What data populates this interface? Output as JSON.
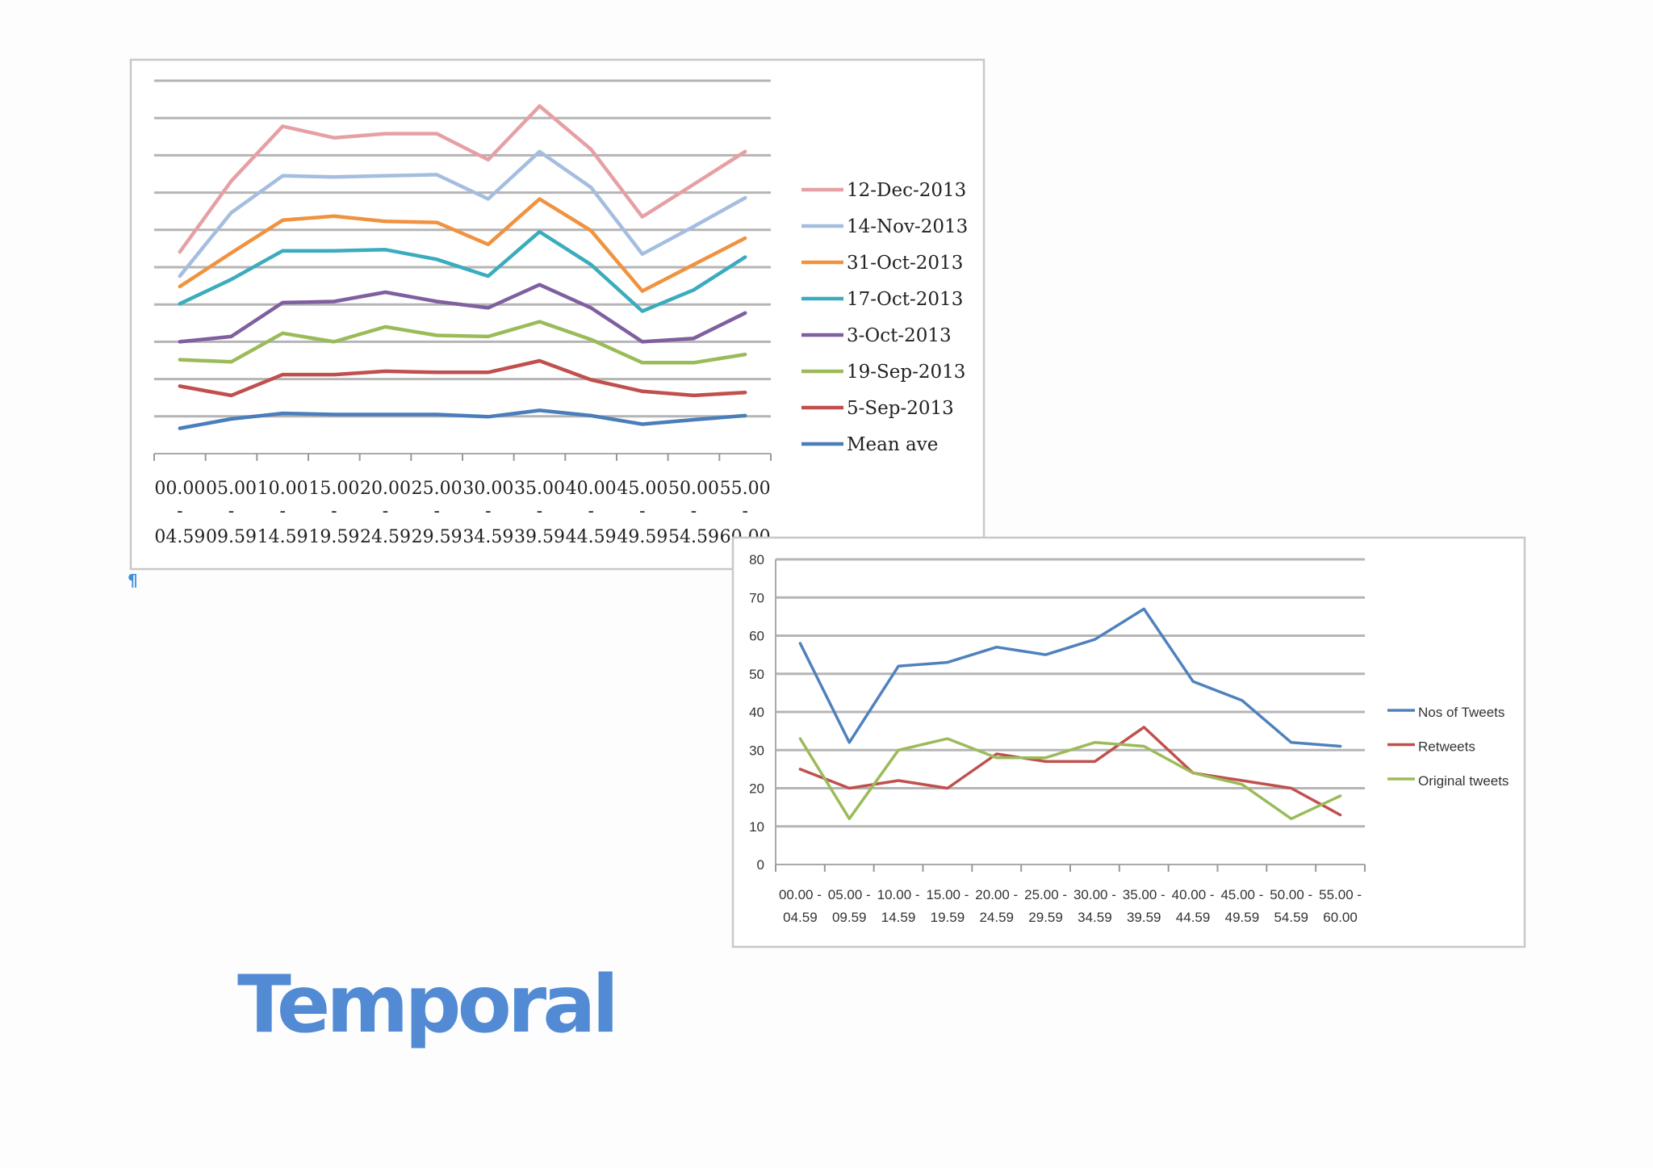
{
  "title": "Temporal",
  "colors": {
    "title": "#528bd4"
  },
  "chart_data": [
    {
      "type": "line",
      "title": "",
      "xlabel": "",
      "ylabel": "",
      "y_axis_labels_shown": false,
      "ylim": [
        0,
        10
      ],
      "grid": true,
      "legend": "right",
      "categories": [
        [
          "00.00",
          "-",
          "04.59"
        ],
        [
          "05.00",
          "-",
          "09.59"
        ],
        [
          "10.00",
          "-",
          "14.59"
        ],
        [
          "15.00",
          "-",
          "19.59"
        ],
        [
          "20.00",
          "-",
          "24.59"
        ],
        [
          "25.00",
          "-",
          "29.59"
        ],
        [
          "30.00",
          "-",
          "34.59"
        ],
        [
          "35.00",
          "-",
          "39.59"
        ],
        [
          "40.00",
          "-",
          "44.59"
        ],
        [
          "45.00",
          "-",
          "49.59"
        ],
        [
          "50.00",
          "-",
          "54.59"
        ],
        [
          "55.00",
          "-",
          "60.00"
        ]
      ],
      "series": [
        {
          "name": "12-Dec-2013",
          "color": "#e6a0a4",
          "values": [
            5.41,
            7.31,
            8.78,
            8.47,
            8.58,
            8.58,
            7.88,
            9.32,
            8.16,
            6.35,
            7.22,
            8.1
          ]
        },
        {
          "name": "14-Nov-2013",
          "color": "#a5bddf",
          "values": [
            4.76,
            6.46,
            7.45,
            7.42,
            7.45,
            7.48,
            6.83,
            8.1,
            7.14,
            5.35,
            6.09,
            6.86
          ]
        },
        {
          "name": "31-Oct-2013",
          "color": "#f0923e",
          "values": [
            4.48,
            5.38,
            6.26,
            6.37,
            6.23,
            6.2,
            5.61,
            6.83,
            5.98,
            4.36,
            5.07,
            5.78
          ]
        },
        {
          "name": "17-Oct-2013",
          "color": "#3aacbe",
          "values": [
            4.02,
            4.67,
            5.44,
            5.44,
            5.47,
            5.21,
            4.76,
            5.95,
            5.07,
            3.82,
            4.39,
            5.27
          ]
        },
        {
          "name": "3-Oct-2013",
          "color": "#7f5f9f",
          "values": [
            3.0,
            3.14,
            4.05,
            4.08,
            4.33,
            4.08,
            3.91,
            4.53,
            3.91,
            3.0,
            3.09,
            3.77
          ]
        },
        {
          "name": "19-Sep-2013",
          "color": "#9bbb59",
          "values": [
            2.52,
            2.46,
            3.23,
            3.0,
            3.4,
            3.17,
            3.14,
            3.54,
            3.06,
            2.44,
            2.44,
            2.66
          ]
        },
        {
          "name": "5-Sep-2013",
          "color": "#c0504d",
          "values": [
            1.81,
            1.56,
            2.12,
            2.12,
            2.21,
            2.18,
            2.18,
            2.49,
            1.98,
            1.67,
            1.56,
            1.64
          ]
        },
        {
          "name": "Mean ave",
          "color": "#4a7ebb",
          "values": [
            0.68,
            0.93,
            1.08,
            1.05,
            1.05,
            1.05,
            0.99,
            1.16,
            1.02,
            0.79,
            0.91,
            1.02
          ]
        }
      ]
    },
    {
      "type": "line",
      "title": "",
      "xlabel": "",
      "ylabel": "",
      "ylim": [
        0,
        80
      ],
      "yticks": [
        "0",
        "10",
        "20",
        "30",
        "40",
        "50",
        "60",
        "70",
        "80"
      ],
      "grid": true,
      "legend": "right",
      "categories": [
        [
          "00.00 -",
          "04.59"
        ],
        [
          "05.00 -",
          "09.59"
        ],
        [
          "10.00 -",
          "14.59"
        ],
        [
          "15.00 -",
          "19.59"
        ],
        [
          "20.00 -",
          "24.59"
        ],
        [
          "25.00 -",
          "29.59"
        ],
        [
          "30.00 -",
          "34.59"
        ],
        [
          "35.00 -",
          "39.59"
        ],
        [
          "40.00 -",
          "44.59"
        ],
        [
          "45.00 -",
          "49.59"
        ],
        [
          "50.00 -",
          "54.59"
        ],
        [
          "55.00 -",
          "60.00"
        ]
      ],
      "series": [
        {
          "name": "Nos of Tweets",
          "color": "#4f81bd",
          "values": [
            58,
            32,
            52,
            53,
            57,
            55,
            59,
            67,
            48,
            43,
            32,
            31
          ]
        },
        {
          "name": "Retweets",
          "color": "#c0504d",
          "values": [
            25,
            20,
            22,
            20,
            29,
            27,
            27,
            36,
            24,
            22,
            20,
            13
          ]
        },
        {
          "name": "Original tweets",
          "color": "#9bbb59",
          "values": [
            33,
            12,
            30,
            33,
            28,
            28,
            32,
            31,
            24,
            21,
            12,
            18
          ]
        }
      ]
    }
  ]
}
